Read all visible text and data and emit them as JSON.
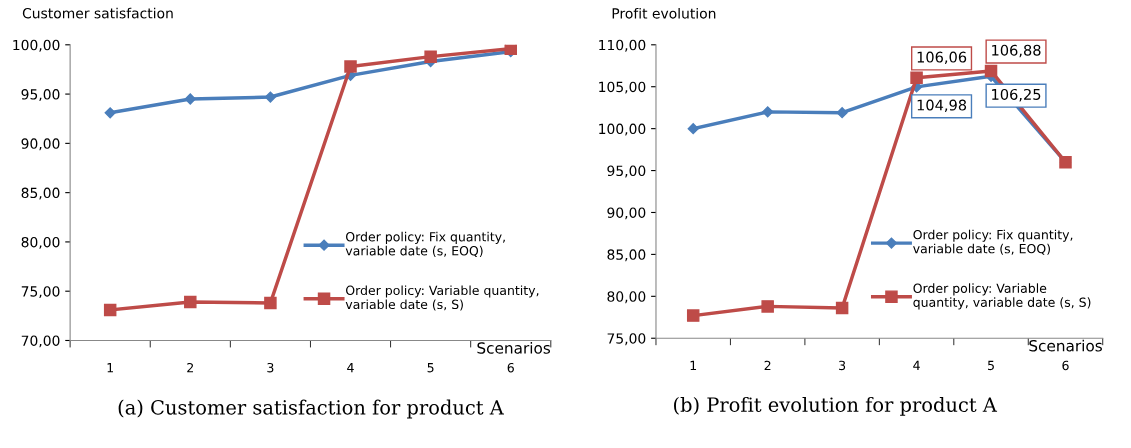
{
  "chart_data": [
    {
      "type": "line",
      "title": "Customer satisfaction",
      "xlabel": "Scenarios",
      "categories": [
        "1",
        "2",
        "3",
        "4",
        "5",
        "6"
      ],
      "series": [
        {
          "name": "Order policy: Fix quantity,\nvariable date (s, EOQ)",
          "color": "#4a7ebb",
          "marker": "diamond",
          "values": [
            93.1,
            94.5,
            94.7,
            96.9,
            98.3,
            99.3
          ]
        },
        {
          "name": "Order policy: Variable quantity,\nvariable date (s, S)",
          "color": "#be4b48",
          "marker": "square",
          "values": [
            73.1,
            73.9,
            73.8,
            97.8,
            98.8,
            99.6
          ]
        }
      ],
      "ylim": [
        70,
        100
      ],
      "yticks": [
        {
          "value": 70,
          "label": "70,00"
        },
        {
          "value": 75,
          "label": "75,00"
        },
        {
          "value": 80,
          "label": "80,00"
        },
        {
          "value": 85,
          "label": "85,00"
        },
        {
          "value": 90,
          "label": "90,00"
        },
        {
          "value": 95,
          "label": "95,00"
        },
        {
          "value": 100,
          "label": "100,00"
        }
      ],
      "grid": false,
      "legend": "lower right",
      "line_style": "solid",
      "annotations": [
        "(a) Customer satisfaction for product A"
      ]
    },
    {
      "type": "line",
      "title": "Profit evolution",
      "xlabel": "Scenarios",
      "categories": [
        "1",
        "2",
        "3",
        "4",
        "5",
        "6"
      ],
      "series": [
        {
          "name": "Order policy: Fix quantity,\nvariable date (s, EOQ)",
          "color": "#4a7ebb",
          "marker": "diamond",
          "values": [
            100.0,
            102.0,
            101.9,
            104.98,
            106.25,
            96.0
          ],
          "value_labels": [
            null,
            null,
            null,
            "104,98",
            "106,25",
            null
          ]
        },
        {
          "name": "Order policy: Variable\nquantity, variable date (s, S)",
          "color": "#be4b48",
          "marker": "square",
          "values": [
            77.7,
            78.8,
            78.6,
            106.06,
            106.88,
            96.0
          ],
          "value_labels": [
            null,
            null,
            null,
            "106,06",
            "106,88",
            null
          ]
        }
      ],
      "ylim": [
        75,
        110
      ],
      "yticks": [
        {
          "value": 75,
          "label": "75,00"
        },
        {
          "value": 80,
          "label": "80,00"
        },
        {
          "value": 85,
          "label": "85,00"
        },
        {
          "value": 90,
          "label": "90,00"
        },
        {
          "value": 95,
          "label": "95,00"
        },
        {
          "value": 100,
          "label": "100,00"
        },
        {
          "value": 105,
          "label": "105,00"
        },
        {
          "value": 110,
          "label": "110,00"
        }
      ],
      "grid": false,
      "legend": "lower right",
      "line_style": "solid",
      "annotations": [
        "(b) Profit evolution for product A"
      ]
    }
  ]
}
